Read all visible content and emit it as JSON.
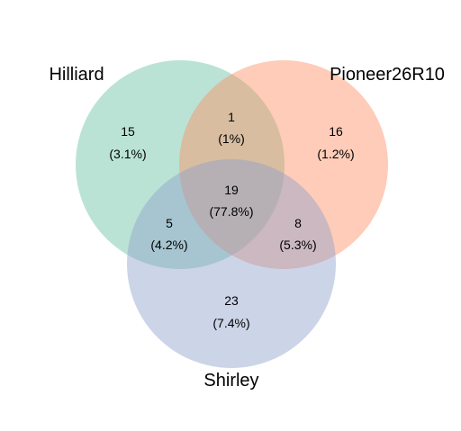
{
  "diagram": {
    "type": "venn",
    "sets": [
      {
        "id": "a",
        "name": "Hilliard",
        "color": "#66C2A5"
      },
      {
        "id": "b",
        "name": "Pioneer26R10",
        "color": "#FC8D62"
      },
      {
        "id": "c",
        "name": "Shirley",
        "color": "#8DA0CB"
      }
    ],
    "regions": [
      {
        "id": "a_only",
        "sets": [
          "Hilliard"
        ],
        "count": "15",
        "percent": "(3.1%)"
      },
      {
        "id": "b_only",
        "sets": [
          "Pioneer26R10"
        ],
        "count": "16",
        "percent": "(1.2%)"
      },
      {
        "id": "c_only",
        "sets": [
          "Shirley"
        ],
        "count": "23",
        "percent": "(7.4%)"
      },
      {
        "id": "ab",
        "sets": [
          "Hilliard",
          "Pioneer26R10"
        ],
        "count": "1",
        "percent": "(1%)"
      },
      {
        "id": "ac",
        "sets": [
          "Hilliard",
          "Shirley"
        ],
        "count": "5",
        "percent": "(4.2%)"
      },
      {
        "id": "bc",
        "sets": [
          "Pioneer26R10",
          "Shirley"
        ],
        "count": "8",
        "percent": "(5.3%)"
      },
      {
        "id": "abc",
        "sets": [
          "Hilliard",
          "Pioneer26R10",
          "Shirley"
        ],
        "count": "19",
        "percent": "(77.8%)"
      }
    ]
  }
}
